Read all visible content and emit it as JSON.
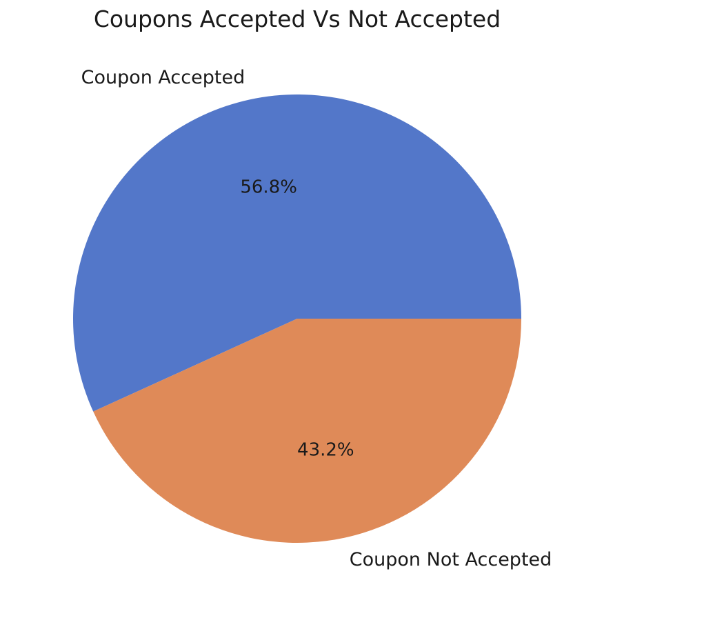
{
  "chart_data": {
    "type": "pie",
    "title": "Coupons Accepted Vs Not Accepted",
    "slices": [
      {
        "label": "Coupon Accepted",
        "value": 56.8,
        "pct_label": "56.8%",
        "color": "#5377c9"
      },
      {
        "label": "Coupon Not Accepted",
        "value": 43.2,
        "pct_label": "43.2%",
        "color": "#df8a58"
      }
    ],
    "start_angle": 0,
    "direction": "counterclockwise",
    "legend": "none"
  }
}
